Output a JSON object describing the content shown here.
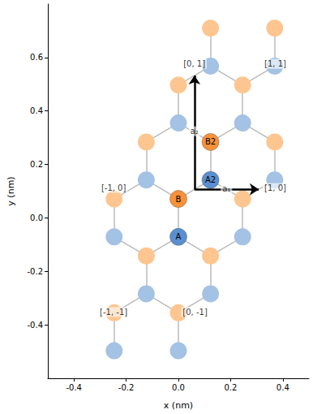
{
  "chart_data": {
    "type": "scatter",
    "x_label": "x (nm)",
    "y_label": "y (nm)",
    "xlim": [
      -0.5,
      0.5
    ],
    "ylim": [
      -0.6,
      0.8
    ],
    "xticks": [
      -0.4,
      -0.2,
      {
        "value": 0,
        "label": "0.0"
      },
      0.2,
      0.4
    ],
    "yticks": [
      -0.4,
      -0.2,
      {
        "value": 0,
        "label": "0.0"
      },
      0.2,
      0.4,
      0.6
    ],
    "grid": false,
    "bonds": {
      "color": "#bbbbbb",
      "values": [
        [
          0,
          -0.071,
          0,
          0.071
        ],
        [
          0,
          0.071,
          0.123,
          0.142
        ],
        [
          0.123,
          0.142,
          0.123,
          0.284
        ],
        [
          0.246,
          -0.071,
          0.246,
          0.071
        ],
        [
          0.246,
          0.071,
          0.369,
          0.142
        ],
        [
          0.369,
          0.142,
          0.369,
          0.284
        ],
        [
          -0.246,
          -0.071,
          -0.246,
          0.071
        ],
        [
          -0.246,
          0.071,
          -0.123,
          0.142
        ],
        [
          -0.123,
          0.142,
          -0.123,
          0.284
        ],
        [
          0,
          0.355,
          0,
          0.497
        ],
        [
          0,
          0.497,
          0.123,
          0.568
        ],
        [
          0.123,
          0.568,
          0.123,
          0.71
        ],
        [
          0.246,
          0.355,
          0.246,
          0.497
        ],
        [
          0.246,
          0.497,
          0.369,
          0.568
        ],
        [
          0.369,
          0.568,
          0.369,
          0.71
        ],
        [
          -0.246,
          -0.497,
          -0.246,
          -0.355
        ],
        [
          -0.246,
          -0.355,
          -0.123,
          -0.284
        ],
        [
          -0.123,
          -0.284,
          -0.123,
          -0.142
        ],
        [
          0,
          -0.497,
          0,
          -0.355
        ],
        [
          0,
          -0.355,
          0.123,
          -0.284
        ],
        [
          0.123,
          -0.284,
          0.123,
          -0.142
        ],
        [
          0,
          0.071,
          -0.123,
          0.142
        ],
        [
          0.246,
          0.071,
          0.123,
          0.142
        ],
        [
          0.246,
          0.497,
          0.123,
          0.568
        ],
        [
          0,
          -0.355,
          -0.123,
          -0.284
        ],
        [
          0.123,
          0.284,
          0,
          0.355
        ],
        [
          0.369,
          0.284,
          0.246,
          0.355
        ],
        [
          -0.123,
          -0.142,
          -0.246,
          -0.071
        ],
        [
          0.123,
          -0.142,
          0,
          -0.071
        ],
        [
          0.123,
          0.284,
          0.246,
          0.355
        ],
        [
          -0.123,
          0.284,
          0,
          0.355
        ],
        [
          -0.123,
          -0.142,
          0,
          -0.071
        ],
        [
          0.123,
          -0.142,
          0.246,
          -0.071
        ]
      ]
    },
    "series": [
      {
        "color": "#a3c2e4",
        "values": [
          [
            0.246,
            -0.071
          ],
          [
            0.369,
            0.142
          ],
          [
            -0.246,
            -0.071
          ],
          [
            -0.123,
            0.142
          ],
          [
            0,
            0.355
          ],
          [
            0.123,
            0.568
          ],
          [
            0.246,
            0.355
          ],
          [
            0.369,
            0.568
          ],
          [
            -0.246,
            -0.497
          ],
          [
            -0.123,
            -0.284
          ],
          [
            0,
            -0.497
          ],
          [
            0.123,
            -0.284
          ]
        ]
      },
      {
        "color": "#fdc690",
        "values": [
          [
            0.246,
            0.071
          ],
          [
            0.369,
            0.284
          ],
          [
            -0.246,
            0.071
          ],
          [
            -0.123,
            0.284
          ],
          [
            0,
            0.497
          ],
          [
            0.123,
            0.71
          ],
          [
            0.246,
            0.497
          ],
          [
            0.369,
            0.71
          ],
          [
            -0.246,
            -0.355
          ],
          [
            -0.123,
            -0.142
          ],
          [
            0,
            -0.355
          ],
          [
            0.123,
            -0.142
          ]
        ]
      },
      {
        "color": "#5b8fd0",
        "values": [
          [
            0,
            -0.071
          ],
          [
            0.123,
            0.142
          ]
        ],
        "labels": [
          "A",
          "A2"
        ]
      },
      {
        "color": "#f7913a",
        "values": [
          [
            0,
            0.071
          ],
          [
            0.123,
            0.284
          ]
        ],
        "labels": [
          "B",
          "B2"
        ]
      }
    ],
    "vectors": [
      {
        "label": "a₁",
        "from": [
          0.0615,
          0.107
        ],
        "to": [
          0.3075,
          0.107
        ],
        "label_at": [
          0.184,
          0.109
        ]
      },
      {
        "label": "a₂",
        "from": [
          0.0615,
          0.107
        ],
        "to": [
          0.0615,
          0.533
        ],
        "label_at": [
          0.0615,
          0.324
        ]
      }
    ],
    "annotations": [
      {
        "text": "[0, 1]",
        "x": 0.061,
        "y": 0.576
      },
      {
        "text": "[1, 1]",
        "x": 0.371,
        "y": 0.576
      },
      {
        "text": "[-1, 0]",
        "x": -0.248,
        "y": 0.112
      },
      {
        "text": "[1, 0]",
        "x": 0.371,
        "y": 0.112
      },
      {
        "text": "[-1, -1]",
        "x": -0.248,
        "y": -0.352
      },
      {
        "text": "[0, -1]",
        "x": 0.064,
        "y": -0.352
      }
    ]
  }
}
